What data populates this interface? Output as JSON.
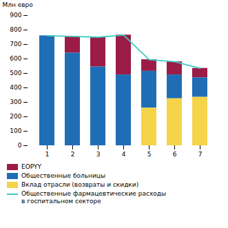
{
  "chart_data": {
    "type": "bar",
    "stacked": true,
    "categories": [
      "1",
      "2",
      "3",
      "4",
      "5",
      "6",
      "7"
    ],
    "series": [
      {
        "name": "EOPYY",
        "color": "#9b1c47",
        "values": [
          0,
          115,
          205,
          275,
          80,
          90,
          65
        ]
      },
      {
        "name": "Общественные больницы",
        "color": "#1f6eb5",
        "values": [
          760,
          640,
          545,
          490,
          255,
          165,
          135
        ]
      },
      {
        "name": "Вклад отрасли (возвраты и скидки)",
        "color": "#f5d44a",
        "values": [
          0,
          0,
          0,
          0,
          260,
          325,
          335
        ]
      },
      {
        "name": "Общественные фармацевтические расходы\nв госпитальном секторе",
        "type": "line",
        "color": "#3eccc0",
        "values": [
          760,
          755,
          750,
          765,
          595,
          580,
          535
        ]
      }
    ],
    "ylabel": "Млн евро",
    "ylim": [
      0,
      900
    ],
    "yticks": [
      0,
      100,
      200,
      300,
      400,
      500,
      600,
      700,
      800,
      900
    ],
    "grid": false,
    "legend": "bottom"
  }
}
